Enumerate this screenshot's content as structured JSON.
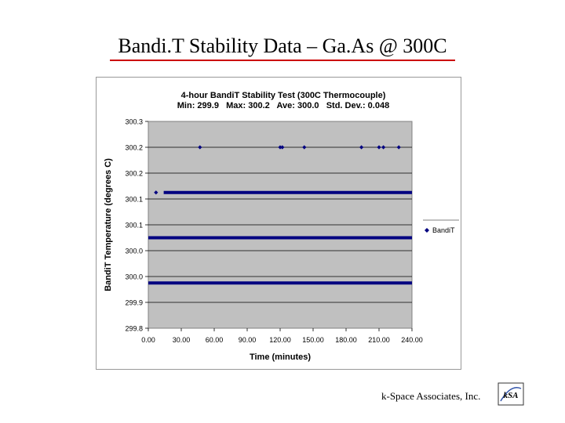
{
  "slide": {
    "title": "Bandi.T Stability Data – Ga.As @ 300C",
    "footer": "k-Space Associates, Inc.",
    "logo_text": "kSA"
  },
  "colors": {
    "title_rule": "#cc0000",
    "plot_area": "#c0c0c0",
    "series": "#000080",
    "gridline": "#000000"
  },
  "chart_data": {
    "type": "scatter",
    "title": "4-hour BandiT Stability Test (300C Thermocouple)",
    "subtitle": "Min: 299.9   Max: 300.2   Ave: 300.0   Std. Dev.: 0.048",
    "xlabel": "Time (minutes)",
    "ylabel": "BandiT Temperature (degrees C)",
    "xlim": [
      0,
      240
    ],
    "ylim": [
      299.8,
      300.2
    ],
    "x_ticks": [
      "0.00",
      "30.00",
      "60.00",
      "90.00",
      "120.00",
      "150.00",
      "180.00",
      "210.00",
      "240.00"
    ],
    "y_ticks": [
      "300.3",
      "300.2",
      "300.2",
      "300.1",
      "300.1",
      "300.0",
      "300.0",
      "299.9",
      "299.8"
    ],
    "y_gridlines": true,
    "x_gridlines": false,
    "legend": {
      "position": "right",
      "entries": [
        "BandiT"
      ]
    },
    "series": [
      {
        "name": "BandiT",
        "marker": "diamond",
        "points": [
          {
            "x": 47,
            "y": 300.2
          },
          {
            "x": 120,
            "y": 300.2
          },
          {
            "x": 122,
            "y": 300.2
          },
          {
            "x": 142,
            "y": 300.2
          },
          {
            "x": 194,
            "y": 300.2
          },
          {
            "x": 210,
            "y": 300.2
          },
          {
            "x": 214,
            "y": 300.2
          },
          {
            "x": 228,
            "y": 300.2
          },
          {
            "x": 7,
            "y": 300.1
          }
        ],
        "runs": [
          {
            "y": 300.1,
            "x_start": 14,
            "x_end": 240
          },
          {
            "y": 300.0,
            "x_start": 0,
            "x_end": 240
          },
          {
            "y": 299.9,
            "x_start": 0,
            "x_end": 240
          }
        ]
      }
    ]
  }
}
